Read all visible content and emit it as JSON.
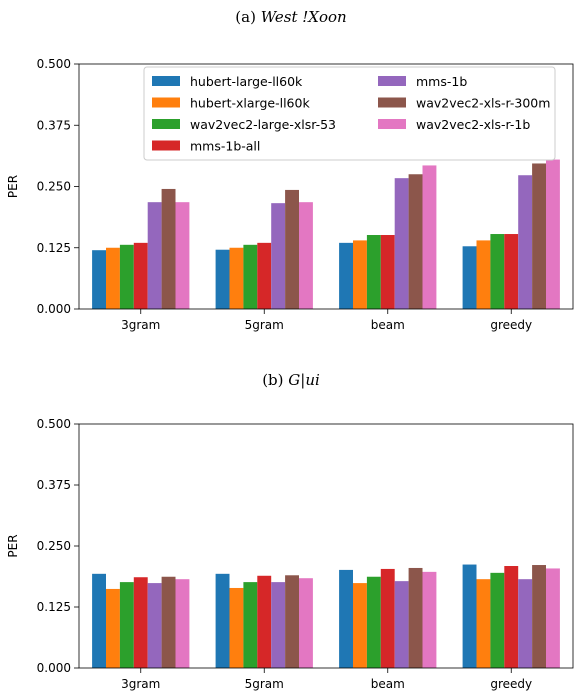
{
  "chart_data": [
    {
      "type": "bar",
      "caption_prefix": "(a) ",
      "caption_name": "West !Xoon",
      "ylabel": "PER",
      "ylim": [
        0,
        0.5
      ],
      "yticks": [
        "0.000",
        "0.125",
        "0.250",
        "0.375",
        "0.500"
      ],
      "categories": [
        "3gram",
        "5gram",
        "beam",
        "greedy"
      ],
      "legend": "top-center",
      "series": [
        {
          "name": "hubert-large-ll60k",
          "color": "#1f77b4",
          "values": [
            0.12,
            0.121,
            0.135,
            0.128
          ]
        },
        {
          "name": "hubert-xlarge-ll60k",
          "color": "#ff7f0e",
          "values": [
            0.125,
            0.125,
            0.14,
            0.14
          ]
        },
        {
          "name": "wav2vec2-large-xlsr-53",
          "color": "#2ca02c",
          "values": [
            0.131,
            0.131,
            0.151,
            0.153
          ]
        },
        {
          "name": "mms-1b-all",
          "color": "#d62728",
          "values": [
            0.135,
            0.135,
            0.151,
            0.153
          ]
        },
        {
          "name": "mms-1b",
          "color": "#9467bd",
          "values": [
            0.218,
            0.216,
            0.267,
            0.273
          ]
        },
        {
          "name": "wav2vec2-xls-r-300m",
          "color": "#8c564b",
          "values": [
            0.245,
            0.243,
            0.275,
            0.297
          ]
        },
        {
          "name": "wav2vec2-xls-r-1b",
          "color": "#e377c2",
          "values": [
            0.218,
            0.218,
            0.293,
            0.305
          ]
        }
      ]
    },
    {
      "type": "bar",
      "caption_prefix": "(b) ",
      "caption_name": "G|ui",
      "ylabel": "PER",
      "ylim": [
        0,
        0.5
      ],
      "yticks": [
        "0.000",
        "0.125",
        "0.250",
        "0.375",
        "0.500"
      ],
      "categories": [
        "3gram",
        "5gram",
        "beam",
        "greedy"
      ],
      "series": [
        {
          "name": "hubert-large-ll60k",
          "color": "#1f77b4",
          "values": [
            0.193,
            0.193,
            0.201,
            0.212
          ]
        },
        {
          "name": "hubert-xlarge-ll60k",
          "color": "#ff7f0e",
          "values": [
            0.162,
            0.164,
            0.174,
            0.182
          ]
        },
        {
          "name": "wav2vec2-large-xlsr-53",
          "color": "#2ca02c",
          "values": [
            0.176,
            0.176,
            0.187,
            0.195
          ]
        },
        {
          "name": "mms-1b-all",
          "color": "#d62728",
          "values": [
            0.186,
            0.189,
            0.203,
            0.209
          ]
        },
        {
          "name": "mms-1b",
          "color": "#9467bd",
          "values": [
            0.174,
            0.176,
            0.178,
            0.182
          ]
        },
        {
          "name": "wav2vec2-xls-r-300m",
          "color": "#8c564b",
          "values": [
            0.187,
            0.19,
            0.205,
            0.211
          ]
        },
        {
          "name": "wav2vec2-xls-r-1b",
          "color": "#e377c2",
          "values": [
            0.182,
            0.184,
            0.197,
            0.204
          ]
        }
      ]
    }
  ]
}
